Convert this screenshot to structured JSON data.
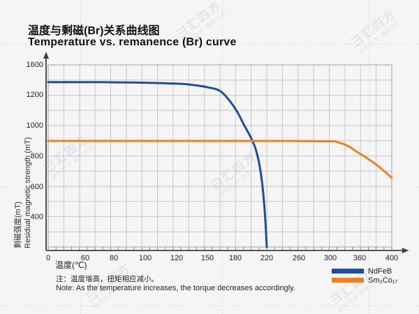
{
  "header": {
    "title_zh": "温度与剩磁(Br)关系曲线图",
    "title_en": "Temperature vs. remanence (Br) curve"
  },
  "note": {
    "zh": "注：温度增高，扭矩相应减小。",
    "en": "Note: As the temperature increases, the torque decreases accordingly."
  },
  "watermark": {
    "brand": "彐汇四方",
    "caption": "版权所有 盗图必究"
  },
  "chart_data": {
    "type": "line",
    "title": "Temperature vs. remanence (Br) curve",
    "xlabel": "温度(℃)",
    "ylabel_zh": "剩磁强度(mT)",
    "ylabel_en": "Residual magnetic strength (mT)",
    "x_ticks": [
      0,
      60,
      80,
      100,
      120,
      150,
      180,
      220,
      260,
      300,
      360,
      400
    ],
    "y_ticks": [
      0,
      400,
      600,
      800,
      1000,
      1200,
      1600
    ],
    "grid": true,
    "legend_position": "bottom-right",
    "series": [
      {
        "name": "NdFeB",
        "color": "#1b4e9b",
        "points": [
          [
            0,
            1370
          ],
          [
            60,
            1370
          ],
          [
            80,
            1368
          ],
          [
            100,
            1362
          ],
          [
            120,
            1350
          ],
          [
            135,
            1334
          ],
          [
            150,
            1302
          ],
          [
            165,
            1240
          ],
          [
            180,
            1110
          ],
          [
            192,
            995
          ],
          [
            200,
            920
          ],
          [
            206,
            845
          ],
          [
            211,
            735
          ],
          [
            215,
            585
          ],
          [
            218,
            385
          ],
          [
            220,
            0
          ]
        ]
      },
      {
        "name": "Sm₂Co₁₇",
        "color": "#f0801e",
        "points": [
          [
            0,
            900
          ],
          [
            60,
            900
          ],
          [
            120,
            900
          ],
          [
            180,
            900
          ],
          [
            240,
            900
          ],
          [
            300,
            898
          ],
          [
            312,
            894
          ],
          [
            325,
            882
          ],
          [
            340,
            860
          ],
          [
            355,
            828
          ],
          [
            370,
            785
          ],
          [
            385,
            728
          ],
          [
            400,
            660
          ]
        ]
      }
    ]
  }
}
